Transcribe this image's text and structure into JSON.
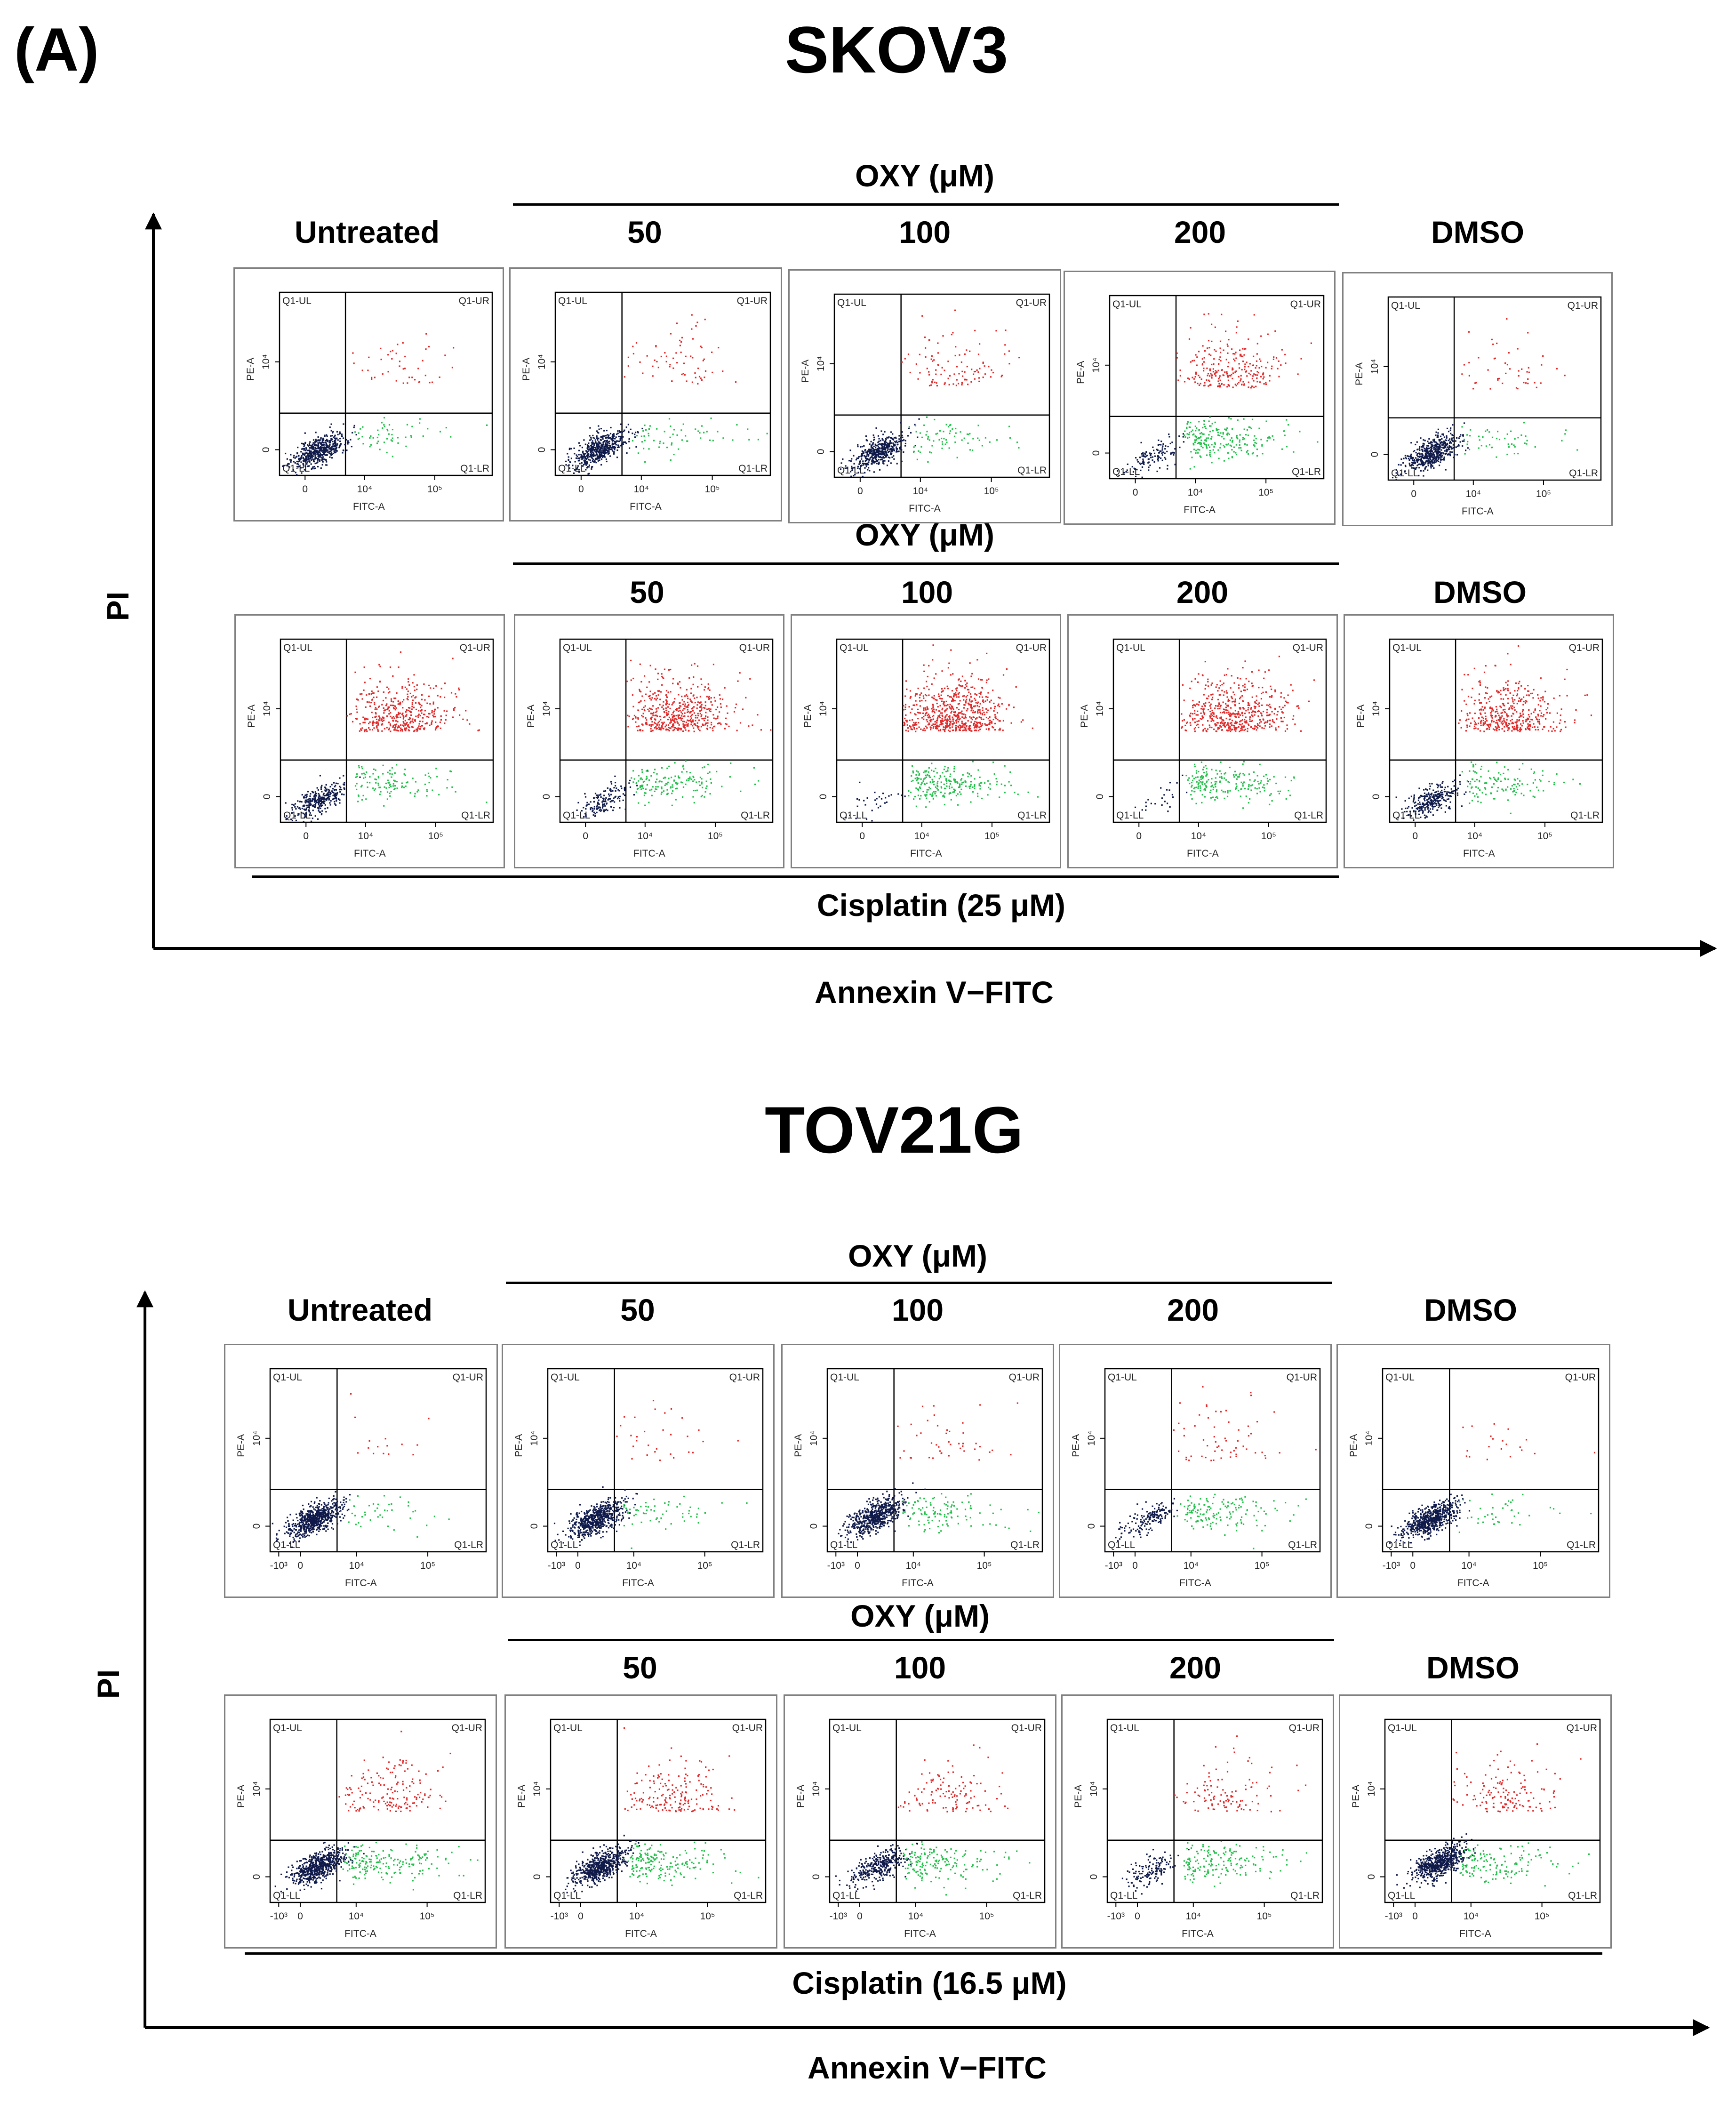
{
  "panel_label": "(A)",
  "colors": {
    "live": "#0f1a4a",
    "early": "#22c04a",
    "late": "#e02a2a",
    "axis": "#000000",
    "frame": "#808080"
  },
  "chart_data": [
    {
      "type": "scatter",
      "title": "SKOV3",
      "xlabel": "Annexin V−FITC",
      "ylabel": "PI",
      "row_brackets": [
        {
          "label": "OXY (μM)",
          "position": "above-row-1"
        },
        {
          "label": "OXY (μM)",
          "position": "above-row-2"
        },
        {
          "label": "Cisplatin (25 μM)",
          "position": "below-row-2"
        }
      ],
      "column_headers_row1": [
        "Untreated",
        "50",
        "100",
        "200",
        "DMSO"
      ],
      "column_headers_row2": [
        "50",
        "100",
        "200",
        "DMSO"
      ],
      "plot_labels": {
        "quadrants": [
          "Q1-UL",
          "Q1-UR",
          "Q1-LL",
          "Q1-LR"
        ],
        "x_axis_label": "FITC-A",
        "y_axis_label": "PE-A",
        "x_ticks": [
          "0",
          "10⁴",
          "10⁵"
        ],
        "y_ticks": [
          "0",
          "10⁴"
        ]
      },
      "plots": [
        {
          "row": 1,
          "condition": "Untreated",
          "live": 520,
          "early": 55,
          "late": 45,
          "live_center": [
            0.18,
            0.14
          ]
        },
        {
          "row": 1,
          "condition": "OXY 50 μM",
          "live": 500,
          "early": 60,
          "late": 70,
          "live_center": [
            0.2,
            0.15
          ]
        },
        {
          "row": 1,
          "condition": "OXY 100 μM",
          "live": 460,
          "early": 75,
          "late": 110,
          "live_center": [
            0.2,
            0.14
          ]
        },
        {
          "row": 1,
          "condition": "OXY 200 μM",
          "live": 120,
          "early": 220,
          "late": 260,
          "live_center": [
            0.2,
            0.12
          ]
        },
        {
          "row": 1,
          "condition": "DMSO",
          "live": 520,
          "early": 50,
          "late": 50,
          "live_center": [
            0.2,
            0.15
          ]
        },
        {
          "row": 2,
          "condition": "Cisplatin",
          "live": 320,
          "early": 120,
          "late": 420,
          "live_center": [
            0.17,
            0.12
          ]
        },
        {
          "row": 2,
          "condition": "Cisplatin + OXY 50 μM",
          "live": 150,
          "early": 160,
          "late": 520,
          "live_center": [
            0.2,
            0.12
          ]
        },
        {
          "row": 2,
          "condition": "Cisplatin + OXY 100 μM",
          "live": 30,
          "early": 230,
          "late": 650,
          "live_center": [
            0.18,
            0.12
          ]
        },
        {
          "row": 2,
          "condition": "Cisplatin + OXY 200 μM",
          "live": 25,
          "early": 200,
          "late": 520,
          "live_center": [
            0.22,
            0.12
          ]
        },
        {
          "row": 2,
          "condition": "Cisplatin + DMSO",
          "live": 280,
          "early": 130,
          "late": 420,
          "live_center": [
            0.2,
            0.12
          ]
        }
      ]
    },
    {
      "type": "scatter",
      "title": "TOV21G",
      "xlabel": "Annexin V−FITC",
      "ylabel": "PI",
      "row_brackets": [
        {
          "label": "OXY (μM)",
          "position": "above-row-1"
        },
        {
          "label": "OXY (μM)",
          "position": "above-row-2"
        },
        {
          "label": "Cisplatin (16.5 μM)",
          "position": "below-row-2"
        }
      ],
      "column_headers_row1": [
        "Untreated",
        "50",
        "100",
        "200",
        "DMSO"
      ],
      "column_headers_row2": [
        "50",
        "100",
        "200",
        "DMSO"
      ],
      "plot_labels": {
        "quadrants": [
          "Q1-UL",
          "Q1-UR",
          "Q1-LL",
          "Q1-LR"
        ],
        "x_axis_label": "FITC-A",
        "y_axis_label": "PE-A",
        "x_ticks": [
          "-10³",
          "0",
          "10⁴",
          "10⁵"
        ],
        "y_ticks": [
          "0",
          "10⁴"
        ]
      },
      "plots": [
        {
          "row": 1,
          "condition": "Untreated",
          "live": 620,
          "early": 40,
          "late": 15,
          "live_center": [
            0.2,
            0.18
          ]
        },
        {
          "row": 1,
          "condition": "OXY 50 μM",
          "live": 600,
          "early": 60,
          "late": 30,
          "live_center": [
            0.22,
            0.18
          ]
        },
        {
          "row": 1,
          "condition": "OXY 100 μM",
          "live": 600,
          "early": 110,
          "late": 45,
          "live_center": [
            0.22,
            0.2
          ]
        },
        {
          "row": 1,
          "condition": "OXY 200 μM",
          "live": 160,
          "early": 150,
          "late": 60,
          "live_center": [
            0.2,
            0.18
          ]
        },
        {
          "row": 1,
          "condition": "DMSO",
          "live": 600,
          "early": 40,
          "late": 20,
          "live_center": [
            0.22,
            0.18
          ]
        },
        {
          "row": 2,
          "condition": "Cisplatin",
          "live": 620,
          "early": 190,
          "late": 170,
          "live_center": [
            0.22,
            0.2
          ]
        },
        {
          "row": 2,
          "condition": "Cisplatin + OXY 50 μM",
          "live": 620,
          "early": 180,
          "late": 180,
          "live_center": [
            0.23,
            0.2
          ]
        },
        {
          "row": 2,
          "condition": "Cisplatin + OXY 100 μM",
          "live": 330,
          "early": 170,
          "late": 120,
          "live_center": [
            0.22,
            0.2
          ]
        },
        {
          "row": 2,
          "condition": "Cisplatin + OXY 200 μM",
          "live": 140,
          "early": 170,
          "late": 110,
          "live_center": [
            0.2,
            0.18
          ]
        },
        {
          "row": 2,
          "condition": "Cisplatin + DMSO",
          "live": 620,
          "early": 140,
          "late": 150,
          "live_center": [
            0.25,
            0.22
          ]
        }
      ]
    }
  ]
}
